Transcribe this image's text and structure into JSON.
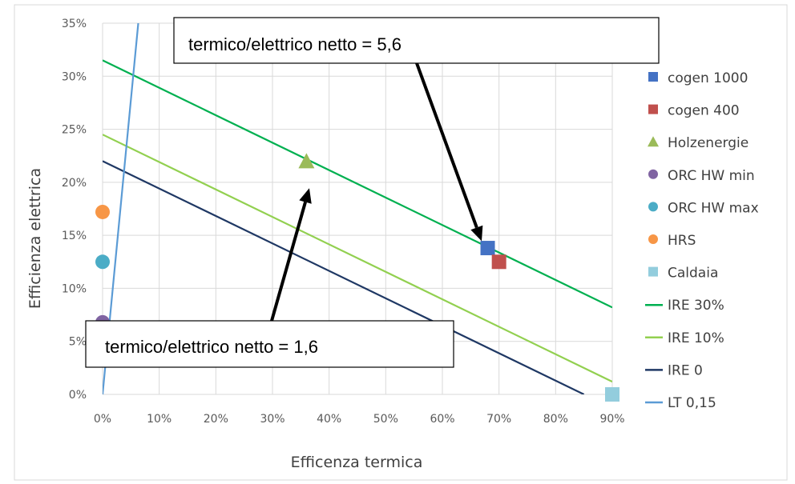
{
  "chart_data": {
    "type": "scatter",
    "xlabel": "Efficenza termica",
    "ylabel": "Efficienza elettrica",
    "xlim": [
      0,
      0.9
    ],
    "ylim": [
      0,
      0.35
    ],
    "x_ticks": [
      0,
      0.1,
      0.2,
      0.3,
      0.4,
      0.5,
      0.6,
      0.7,
      0.8,
      0.9
    ],
    "x_tick_labels": [
      "0%",
      "10%",
      "20%",
      "30%",
      "40%",
      "50%",
      "60%",
      "70%",
      "80%",
      "90%"
    ],
    "y_ticks": [
      0,
      0.05,
      0.1,
      0.15,
      0.2,
      0.25,
      0.3,
      0.35
    ],
    "y_tick_labels": [
      "0%",
      "5%",
      "10%",
      "15%",
      "20%",
      "25%",
      "30%",
      "35%"
    ],
    "grid": true,
    "legend_position": "right",
    "points": [
      {
        "name": "cogen 1000",
        "x": 0.68,
        "y": 0.138,
        "marker": "square",
        "color": "#4472C4"
      },
      {
        "name": "cogen 400",
        "x": 0.7,
        "y": 0.125,
        "marker": "square",
        "color": "#C0504D"
      },
      {
        "name": "Holzenergie",
        "x": 0.36,
        "y": 0.22,
        "marker": "triangle",
        "color": "#9BBB59"
      },
      {
        "name": "ORC HW min",
        "x": 0.0,
        "y": 0.068,
        "marker": "circle",
        "color": "#8064A2"
      },
      {
        "name": "ORC HW max",
        "x": 0.0,
        "y": 0.125,
        "marker": "circle",
        "color": "#4BACC6"
      },
      {
        "name": "HRS",
        "x": 0.0,
        "y": 0.172,
        "marker": "circle",
        "color": "#F79646"
      },
      {
        "name": "Caldaia",
        "x": 0.9,
        "y": 0.0,
        "marker": "square",
        "color": "#93CDDD"
      }
    ],
    "lines": [
      {
        "name": "IRE 30%",
        "x": [
          0,
          0.9
        ],
        "y": [
          0.315,
          0.082
        ],
        "color": "#00B050"
      },
      {
        "name": "IRE 10%",
        "x": [
          0,
          0.9
        ],
        "y": [
          0.245,
          0.012
        ],
        "color": "#92D050"
      },
      {
        "name": "IRE 0",
        "x": [
          0,
          0.85
        ],
        "y": [
          0.22,
          0.0
        ],
        "color": "#1F3864"
      },
      {
        "name": "LT 0,15",
        "x": [
          0,
          0.063
        ],
        "y": [
          0,
          0.35
        ],
        "color": "#5B9BD5"
      }
    ],
    "annotations": [
      {
        "text": "termico/elettrico netto = 5,6",
        "arrow_to": {
          "x": 0.675,
          "y": 0.137
        }
      },
      {
        "text": "termico/elettrico netto = 1,6",
        "arrow_to": {
          "x": 0.365,
          "y": 0.205
        }
      }
    ]
  }
}
